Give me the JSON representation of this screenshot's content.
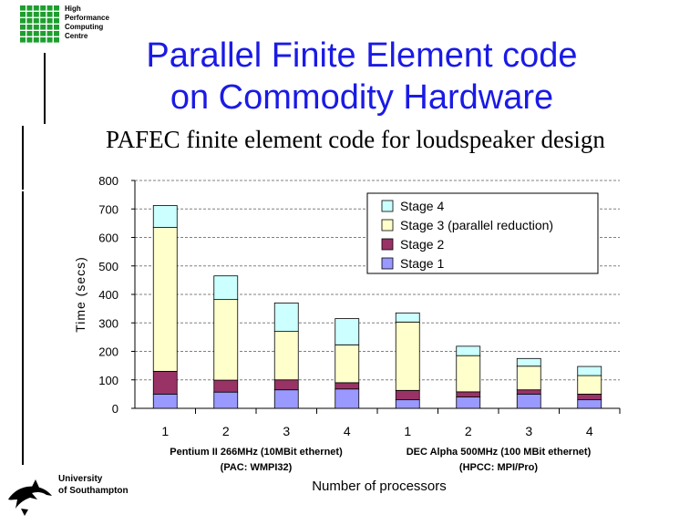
{
  "logo": {
    "lines": [
      "High",
      "Performance",
      "Computing",
      "Centre"
    ],
    "grid_color": "#1e9e2e"
  },
  "title_lines": [
    "Parallel Finite Element code",
    "on Commodity Hardware"
  ],
  "subtitle": "PAFEC finite element code for loudspeaker design",
  "university": {
    "lines": [
      "University",
      "of Southampton"
    ]
  },
  "chart_data": {
    "type": "bar",
    "stacked": true,
    "ylabel": "Time (secs)",
    "xlabel": "Number of processors",
    "ylim": [
      0,
      800
    ],
    "yticks": [
      0,
      100,
      200,
      300,
      400,
      500,
      600,
      700,
      800
    ],
    "grid": true,
    "legend_position": "top-right",
    "categories": [
      "1",
      "2",
      "3",
      "4",
      "1",
      "2",
      "3",
      "4"
    ],
    "groups": [
      {
        "lines": [
          "Pentium II 266MHz (10MBit ethernet)",
          "(PAC: WMPI32)"
        ]
      },
      {
        "lines": [
          "DEC Alpha 500MHz (100 MBit ethernet)",
          "(HPCC: MPI/Pro)"
        ]
      }
    ],
    "series": [
      {
        "name": "Stage 1",
        "color": "#9999ff",
        "values": [
          50,
          57,
          65,
          68,
          30,
          40,
          50,
          30
        ]
      },
      {
        "name": "Stage 2",
        "color": "#993366",
        "values": [
          80,
          42,
          35,
          22,
          33,
          18,
          15,
          20
        ]
      },
      {
        "name": "Stage 3 (parallel reduction)",
        "color": "#ffffcc",
        "values": [
          505,
          283,
          170,
          133,
          240,
          127,
          83,
          65
        ]
      },
      {
        "name": "Stage 4",
        "color": "#ccffff",
        "values": [
          77,
          83,
          100,
          92,
          32,
          33,
          27,
          32
        ]
      }
    ],
    "legend_order": [
      "Stage 4",
      "Stage 3 (parallel reduction)",
      "Stage 2",
      "Stage 1"
    ]
  }
}
